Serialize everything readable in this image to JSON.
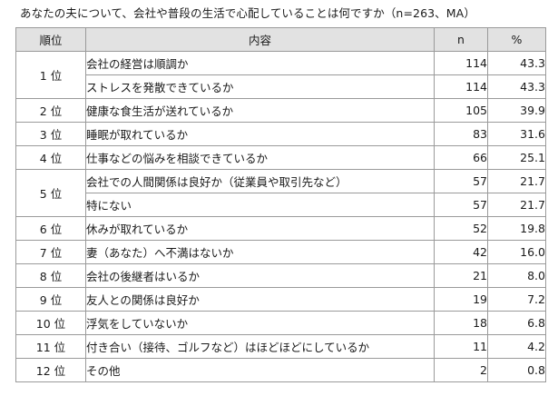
{
  "title": "あなたの夫について、会社や普段の生活で心配していることは何ですか（n=263、MA）",
  "headers": {
    "rank": "順位",
    "item": "内容",
    "n": "n",
    "pct": "%"
  },
  "rows": [
    {
      "rank": "1 位",
      "item": "会社の経営は順調か",
      "n": "114",
      "pct": "43.3"
    },
    {
      "rank": "",
      "item": "ストレスを発散できているか",
      "n": "114",
      "pct": "43.3"
    },
    {
      "rank": "2 位",
      "item": "健康な食生活が送れているか",
      "n": "105",
      "pct": "39.9"
    },
    {
      "rank": "3 位",
      "item": "睡眠が取れているか",
      "n": "83",
      "pct": "31.6"
    },
    {
      "rank": "4 位",
      "item": "仕事などの悩みを相談できているか",
      "n": "66",
      "pct": "25.1"
    },
    {
      "rank": "5 位",
      "item": "会社での人間関係は良好か（従業員や取引先など）",
      "n": "57",
      "pct": "21.7"
    },
    {
      "rank": "",
      "item": "特にない",
      "n": "57",
      "pct": "21.7"
    },
    {
      "rank": "6 位",
      "item": "休みが取れているか",
      "n": "52",
      "pct": "19.8"
    },
    {
      "rank": "7 位",
      "item": "妻（あなた）へ不満はないか",
      "n": "42",
      "pct": "16.0"
    },
    {
      "rank": "8 位",
      "item": "会社の後継者はいるか",
      "n": "21",
      "pct": "8.0"
    },
    {
      "rank": "9 位",
      "item": "友人との関係は良好か",
      "n": "19",
      "pct": "7.2"
    },
    {
      "rank": "10 位",
      "item": "浮気をしていないか",
      "n": "18",
      "pct": "6.8"
    },
    {
      "rank": "11 位",
      "item": "付き合い（接待、ゴルフなど）はほどほどにしているか",
      "n": "11",
      "pct": "4.2"
    },
    {
      "rank": "12 位",
      "item": "その他",
      "n": "2",
      "pct": "0.8"
    }
  ],
  "colors": {
    "header_bg": "#e2e2e2",
    "border": "#9a9a9a",
    "text": "#1a1a1a"
  }
}
